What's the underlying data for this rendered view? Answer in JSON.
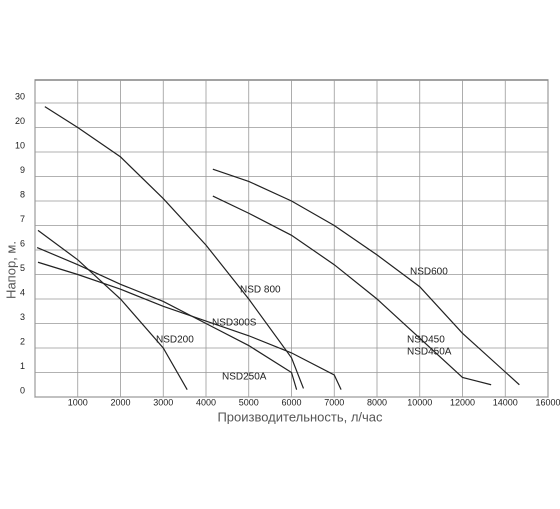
{
  "chart_data": {
    "type": "line",
    "ylabel": "Напор, м.",
    "xlabel": "Производительность, л/час",
    "xlim": [
      0,
      16000
    ],
    "xticks": [
      0,
      1000,
      2000,
      3000,
      4000,
      5000,
      6000,
      7000,
      8000,
      10000,
      12000,
      14000,
      16000
    ],
    "ylim": [
      0,
      30
    ],
    "yticks": [
      0,
      1,
      2,
      3,
      4,
      5,
      6,
      7,
      8,
      9,
      10,
      20,
      30
    ],
    "grid": true,
    "series": [
      {
        "name": "NSD 800",
        "color": "#222222",
        "x": [
          230,
          1000,
          2000,
          3000,
          4000,
          5000,
          6000,
          6280
        ],
        "values": [
          28.5,
          20,
          9.8,
          8.1,
          6.2,
          4,
          1.6,
          0.35
        ]
      },
      {
        "name": "NSD200",
        "color": "#222222",
        "x": [
          70,
          1000,
          2000,
          3000,
          3560
        ],
        "values": [
          6.8,
          5.6,
          4,
          2,
          0.3
        ]
      },
      {
        "name": "NSD250A",
        "color": "#222222",
        "x": [
          50,
          1000,
          2000,
          3000,
          4000,
          5000,
          6000,
          6120
        ],
        "values": [
          6.1,
          5.4,
          4.6,
          3.9,
          3,
          2.1,
          1,
          0.3
        ]
      },
      {
        "name": "NSD300S",
        "color": "#222222",
        "x": [
          70,
          1000,
          2000,
          3000,
          4000,
          5000,
          6000,
          7000,
          7160
        ],
        "values": [
          5.5,
          5,
          4.4,
          3.7,
          3.1,
          2.5,
          1.8,
          0.9,
          0.3
        ]
      },
      {
        "name": "NSD600",
        "color": "#222222",
        "x": [
          4160,
          5000,
          6000,
          7000,
          8000,
          10000,
          12000,
          14660
        ],
        "values": [
          9.3,
          8.8,
          8,
          7,
          5.8,
          4.5,
          2.6,
          0.5
        ]
      },
      {
        "name": "NSD450",
        "color": "#222222",
        "x": [
          4160,
          5000,
          6000,
          7000,
          8000,
          10000,
          12000,
          13340
        ],
        "values": [
          8.2,
          7.5,
          6.6,
          5.4,
          4,
          2.4,
          0.8,
          0.5
        ]
      }
    ],
    "annotations": [
      "NSD450A"
    ]
  }
}
